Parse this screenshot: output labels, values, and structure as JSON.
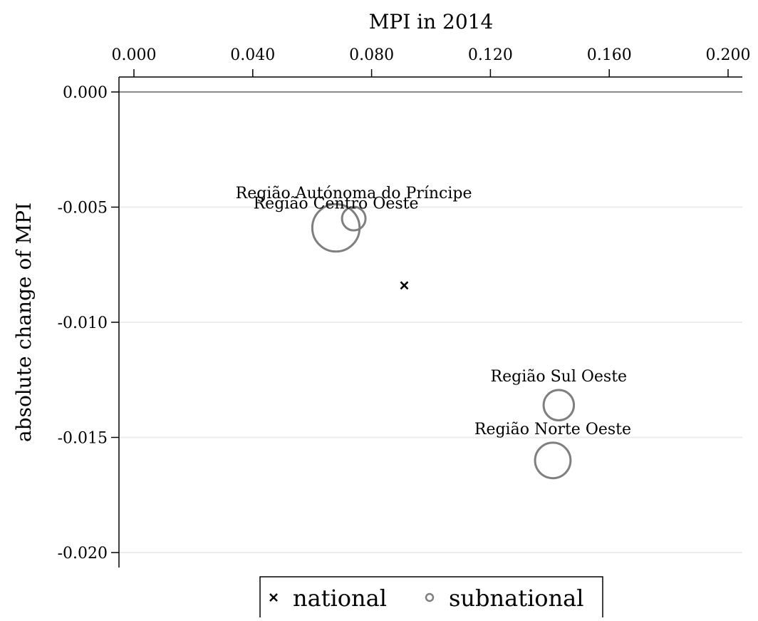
{
  "chart_data": {
    "type": "scatter",
    "xlabel": "MPI in 2014",
    "ylabel": "absolute change of MPI",
    "xlim": [
      0.0,
      0.2
    ],
    "ylim": [
      -0.02,
      0.0
    ],
    "x_axis_position": "top",
    "x_ticks": [
      "0.000",
      "0.040",
      "0.080",
      "0.120",
      "0.160",
      "0.200"
    ],
    "y_ticks": [
      "0.000",
      "-0.005",
      "-0.010",
      "-0.015",
      "-0.020"
    ],
    "grid": "horizontal",
    "series": [
      {
        "name": "national",
        "marker": "x",
        "color": "#000000",
        "points": [
          {
            "x": 0.091,
            "y": -0.0084
          }
        ]
      },
      {
        "name": "subnational",
        "marker": "circle",
        "color": "#7f7f7f",
        "points": [
          {
            "label": "Região Autónoma do Príncipe",
            "x": 0.074,
            "y": -0.0055,
            "size": 1
          },
          {
            "label": "Região Centro Oeste",
            "x": 0.068,
            "y": -0.0059,
            "size": 6
          },
          {
            "label": "Região Sul Oeste",
            "x": 0.143,
            "y": -0.0136,
            "size": 2
          },
          {
            "label": "Região Norte Oeste",
            "x": 0.141,
            "y": -0.016,
            "size": 3
          }
        ]
      }
    ],
    "legend": {
      "position": "bottom",
      "entries": [
        "national",
        "subnational"
      ]
    }
  }
}
